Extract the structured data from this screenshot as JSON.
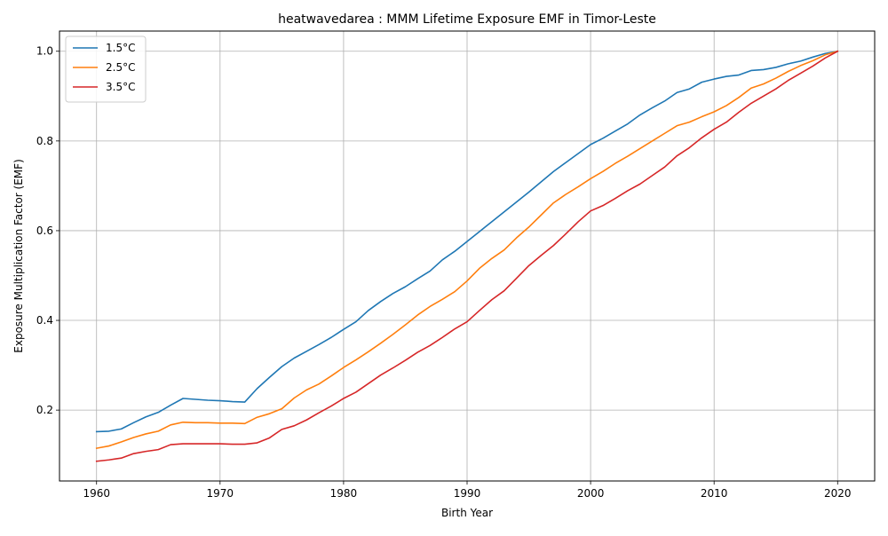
{
  "chart_data": {
    "type": "line",
    "title": "heatwavedarea : MMM Lifetime Exposure EMF in Timor-Leste",
    "xlabel": "Birth Year",
    "ylabel": "Exposure Multiplication Factor (EMF)",
    "xlim": [
      1957,
      2023
    ],
    "ylim": [
      0.042,
      1.045
    ],
    "xticks": [
      1960,
      1970,
      1980,
      1990,
      2000,
      2010,
      2020
    ],
    "yticks": [
      0.2,
      0.4,
      0.6,
      0.8,
      1.0
    ],
    "xtick_labels": [
      "1960",
      "1970",
      "1980",
      "1990",
      "2000",
      "2010",
      "2020"
    ],
    "ytick_labels": [
      "0.2",
      "0.4",
      "0.6",
      "0.8",
      "1.0"
    ],
    "grid": true,
    "legend_position": "top-left",
    "x": [
      1960,
      1961,
      1962,
      1963,
      1964,
      1965,
      1966,
      1967,
      1968,
      1969,
      1970,
      1971,
      1972,
      1973,
      1974,
      1975,
      1976,
      1977,
      1978,
      1979,
      1980,
      1981,
      1982,
      1983,
      1984,
      1985,
      1986,
      1987,
      1988,
      1989,
      1990,
      1991,
      1992,
      1993,
      1994,
      1995,
      1996,
      1997,
      1998,
      1999,
      2000,
      2001,
      2002,
      2003,
      2004,
      2005,
      2006,
      2007,
      2008,
      2009,
      2010,
      2011,
      2012,
      2013,
      2014,
      2015,
      2016,
      2017,
      2018,
      2019,
      2020
    ],
    "series": [
      {
        "name": "1.5°C",
        "color": "#1f77b4",
        "values": [
          0.152,
          0.153,
          0.158,
          0.172,
          0.185,
          0.195,
          0.211,
          0.226,
          0.224,
          0.222,
          0.221,
          0.219,
          0.218,
          0.248,
          0.273,
          0.297,
          0.316,
          0.331,
          0.346,
          0.362,
          0.38,
          0.397,
          0.422,
          0.442,
          0.46,
          0.475,
          0.493,
          0.51,
          0.535,
          0.554,
          0.576,
          0.598,
          0.62,
          0.642,
          0.664,
          0.686,
          0.709,
          0.732,
          0.752,
          0.772,
          0.792,
          0.806,
          0.822,
          0.838,
          0.858,
          0.874,
          0.889,
          0.908,
          0.916,
          0.931,
          0.938,
          0.944,
          0.947,
          0.957,
          0.959,
          0.964,
          0.972,
          0.978,
          0.987,
          0.995,
          1.0
        ]
      },
      {
        "name": "2.5°C",
        "color": "#ff7f0e",
        "values": [
          0.115,
          0.12,
          0.129,
          0.139,
          0.147,
          0.153,
          0.167,
          0.173,
          0.172,
          0.172,
          0.171,
          0.171,
          0.17,
          0.184,
          0.192,
          0.203,
          0.227,
          0.245,
          0.258,
          0.276,
          0.295,
          0.312,
          0.33,
          0.349,
          0.369,
          0.39,
          0.412,
          0.431,
          0.447,
          0.464,
          0.488,
          0.516,
          0.538,
          0.557,
          0.584,
          0.608,
          0.635,
          0.662,
          0.681,
          0.698,
          0.716,
          0.732,
          0.75,
          0.766,
          0.783,
          0.8,
          0.817,
          0.834,
          0.842,
          0.854,
          0.865,
          0.879,
          0.897,
          0.918,
          0.927,
          0.94,
          0.955,
          0.968,
          0.979,
          0.992,
          1.0
        ]
      },
      {
        "name": "3.5°C",
        "color": "#d62728",
        "values": [
          0.086,
          0.089,
          0.093,
          0.103,
          0.108,
          0.112,
          0.123,
          0.125,
          0.125,
          0.125,
          0.125,
          0.124,
          0.124,
          0.127,
          0.138,
          0.157,
          0.165,
          0.178,
          0.194,
          0.209,
          0.226,
          0.24,
          0.259,
          0.278,
          0.294,
          0.311,
          0.329,
          0.344,
          0.362,
          0.381,
          0.397,
          0.422,
          0.446,
          0.466,
          0.494,
          0.522,
          0.545,
          0.567,
          0.593,
          0.62,
          0.644,
          0.656,
          0.672,
          0.689,
          0.704,
          0.723,
          0.742,
          0.767,
          0.785,
          0.807,
          0.826,
          0.842,
          0.864,
          0.884,
          0.9,
          0.916,
          0.935,
          0.951,
          0.967,
          0.985,
          1.0
        ]
      }
    ]
  }
}
